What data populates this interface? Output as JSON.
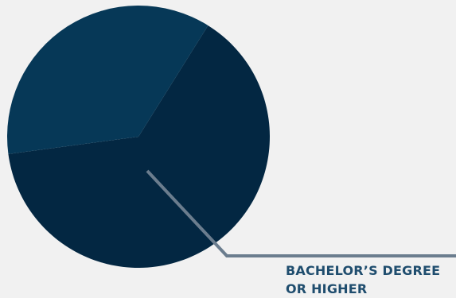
{
  "chart_data": {
    "type": "pie",
    "slices": [
      {
        "label": "BACHELOR’S DEGREE OR HIGHER",
        "value": 64,
        "color": "#032742"
      },
      {
        "label": "",
        "value": 36,
        "color": "#063857"
      }
    ],
    "callout": {
      "line1": "BACHELOR’S DEGREE",
      "line2": "OR HIGHER",
      "color": "#1f4d6e",
      "leader_color": "#6b7d8e"
    },
    "legend": "none",
    "background": "#f1f1f1"
  }
}
